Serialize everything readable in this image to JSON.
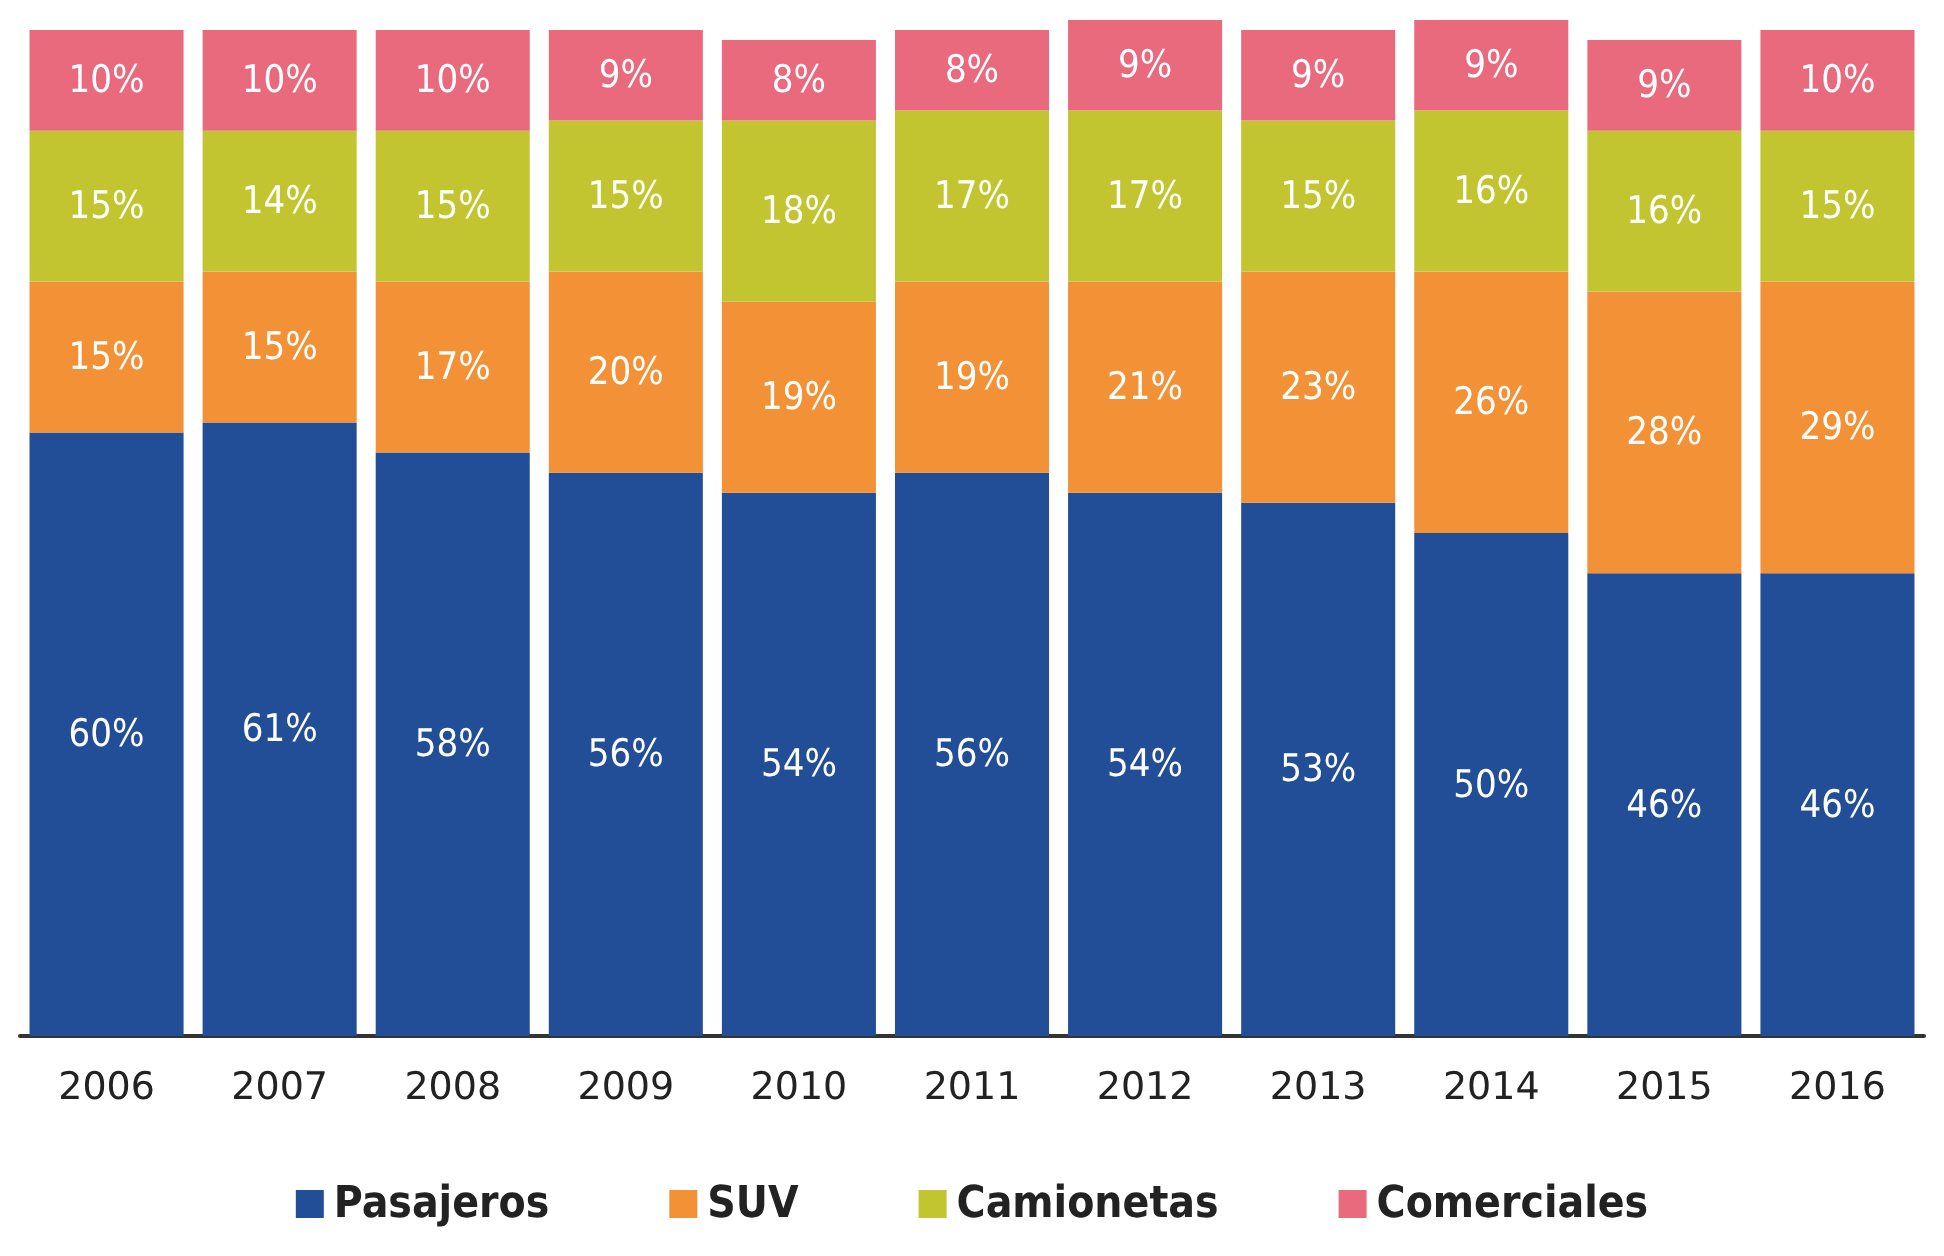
{
  "chart_data": {
    "type": "bar",
    "stacked": true,
    "categories": [
      "2006",
      "2007",
      "2008",
      "2009",
      "2010",
      "2011",
      "2012",
      "2013",
      "2014",
      "2015",
      "2016"
    ],
    "series": [
      {
        "name": "Pasajeros",
        "color": "#214e96",
        "values": [
          60,
          61,
          58,
          56,
          54,
          56,
          54,
          53,
          50,
          46,
          46
        ],
        "value_labels": [
          "60%",
          "61%",
          "58%",
          "56%",
          "54%",
          "56%",
          "54%",
          "53%",
          "50%",
          "46%",
          "46%"
        ]
      },
      {
        "name": "SUV",
        "color": "#f39137",
        "values": [
          15,
          15,
          17,
          20,
          19,
          19,
          21,
          23,
          26,
          28,
          29
        ],
        "value_labels": [
          "15%",
          "15%",
          "17%",
          "20%",
          "19%",
          "19%",
          "21%",
          "23%",
          "26%",
          "28%",
          "29%"
        ]
      },
      {
        "name": "Camionetas",
        "color": "#c3c530",
        "values": [
          15,
          14,
          15,
          15,
          18,
          17,
          17,
          15,
          16,
          16,
          15
        ],
        "value_labels": [
          "15%",
          "14%",
          "15%",
          "15%",
          "18%",
          "17%",
          "17%",
          "15%",
          "16%",
          "16%",
          "15%"
        ]
      },
      {
        "name": "Comerciales",
        "color": "#e96a7d",
        "values": [
          10,
          10,
          10,
          9,
          8,
          8,
          9,
          9,
          9,
          9,
          10
        ],
        "value_labels": [
          "10%",
          "10%",
          "10%",
          "9%",
          "8%",
          "8%",
          "9%",
          "9%",
          "9%",
          "9%",
          "10%"
        ]
      }
    ],
    "legend": "bottom"
  }
}
